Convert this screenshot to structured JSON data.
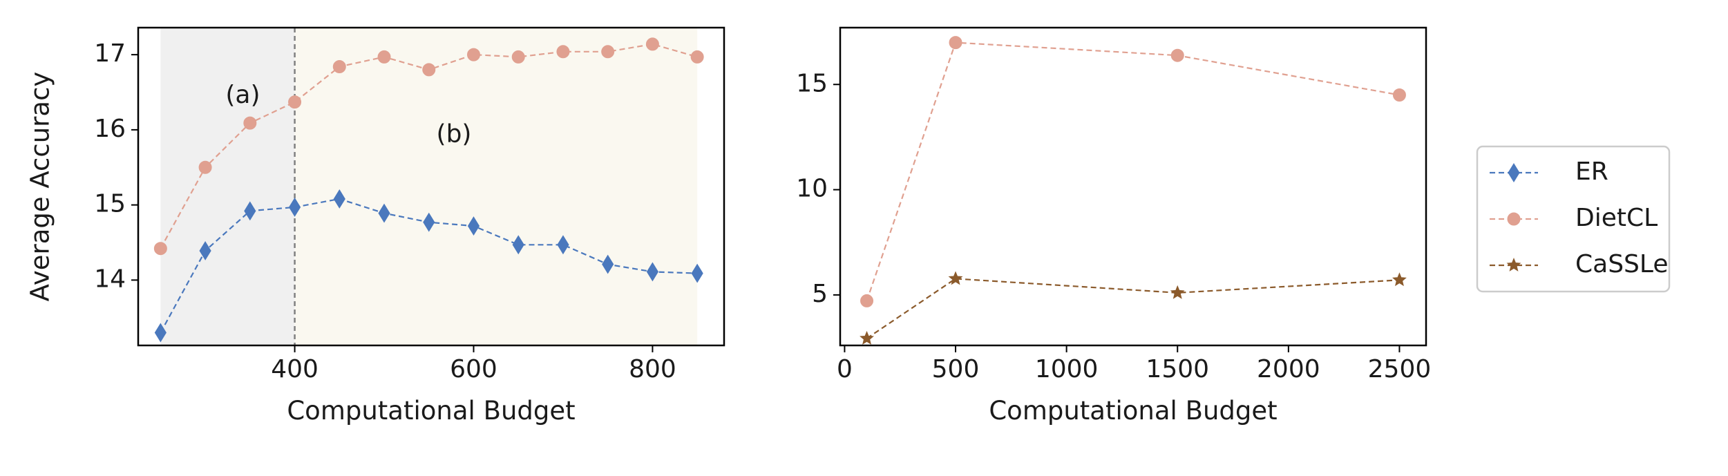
{
  "colors": {
    "ER": "#4a78bd",
    "DietCL": "#e0a090",
    "CaSSLe": "#8b5a2b",
    "region_a_fill": "#f0f0f0",
    "region_b_fill": "#faf8f0",
    "divider": "#808080"
  },
  "legend": {
    "placement": "right",
    "entries": [
      {
        "name": "ER",
        "marker": "diamond"
      },
      {
        "name": "DietCL",
        "marker": "circle"
      },
      {
        "name": "CaSSLe",
        "marker": "star"
      }
    ]
  },
  "chart_data": [
    {
      "type": "line",
      "xlabel": "Computational Budget",
      "ylabel": "Average Accuracy",
      "xlim": [
        225,
        880
      ],
      "ylim": [
        13.13,
        17.36
      ],
      "xticks": [
        400,
        600,
        800
      ],
      "yticks": [
        14,
        15,
        16,
        17
      ],
      "grid": false,
      "x": [
        250,
        300,
        350,
        400,
        450,
        500,
        550,
        600,
        650,
        700,
        750,
        800,
        850
      ],
      "series": [
        {
          "name": "ER",
          "marker": "diamond",
          "values": [
            13.3,
            14.39,
            14.92,
            14.97,
            15.08,
            14.89,
            14.77,
            14.72,
            14.47,
            14.47,
            14.21,
            14.11,
            14.09
          ]
        },
        {
          "name": "DietCL",
          "marker": "circle",
          "values": [
            14.42,
            15.5,
            16.09,
            16.37,
            16.84,
            16.97,
            16.8,
            17.0,
            16.97,
            17.04,
            17.04,
            17.14,
            16.97
          ]
        }
      ],
      "regions": [
        {
          "label": "(a)",
          "x_range": [
            250,
            400
          ]
        },
        {
          "label": "(b)",
          "x_range": [
            400,
            850
          ]
        }
      ],
      "vline_x": 400
    },
    {
      "type": "line",
      "xlabel": "Computational Budget",
      "ylabel": "",
      "xlim": [
        -20,
        2620
      ],
      "ylim": [
        2.6,
        17.7
      ],
      "xticks": [
        0,
        500,
        1000,
        1500,
        2000,
        2500
      ],
      "yticks": [
        5,
        10,
        15
      ],
      "grid": false,
      "x": [
        100,
        500,
        1500,
        2500
      ],
      "series": [
        {
          "name": "DietCL",
          "marker": "circle",
          "values": [
            4.72,
            16.99,
            16.38,
            14.5
          ]
        },
        {
          "name": "CaSSLe",
          "marker": "star",
          "values": [
            2.93,
            5.77,
            5.1,
            5.71
          ]
        }
      ]
    }
  ]
}
